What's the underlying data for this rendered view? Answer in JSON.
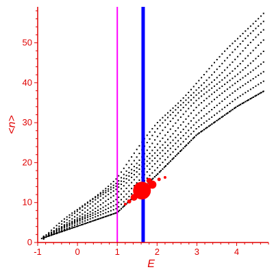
{
  "chart_data": {
    "type": "scatter",
    "title": "",
    "xlabel": "E",
    "ylabel": "<n>",
    "xlim": [
      -1,
      4.8
    ],
    "ylim": [
      0,
      59
    ],
    "xticks": [
      -1,
      0,
      1,
      2,
      3,
      4
    ],
    "yticks": [
      0,
      10,
      20,
      30,
      40,
      50
    ],
    "grid": false,
    "legend": "none",
    "colors": {
      "axis": "#e00000",
      "points": "#000000",
      "highlight": "#ff0000",
      "line_e1": "#ff00ff",
      "line_e2": "#0000ff"
    },
    "vertical_lines": [
      {
        "x": 1.0,
        "color": "#ff00ff",
        "width": 2
      },
      {
        "x": 1.65,
        "color": "#0000ff",
        "width": 5
      }
    ],
    "bands": {
      "lower_edge": [
        [
          -0.9,
          1
        ],
        [
          1.0,
          7.5
        ],
        [
          2.0,
          17
        ],
        [
          3.0,
          27
        ],
        [
          4.0,
          34
        ],
        [
          4.7,
          38
        ]
      ],
      "upper_edge": [
        [
          -0.9,
          1
        ],
        [
          0.0,
          8
        ],
        [
          1.0,
          17
        ],
        [
          2.0,
          30
        ],
        [
          3.0,
          41
        ],
        [
          4.0,
          51
        ],
        [
          4.7,
          59
        ]
      ],
      "row_spacing": 0.12
    },
    "highlight_points": [
      {
        "x": 1.62,
        "y": 13.0,
        "r": 13
      },
      {
        "x": 1.88,
        "y": 14.5,
        "r": 6
      },
      {
        "x": 1.42,
        "y": 11.3,
        "r": 5
      },
      {
        "x": 1.8,
        "y": 15.5,
        "r": 4
      },
      {
        "x": 1.3,
        "y": 10.3,
        "r": 3
      },
      {
        "x": 2.05,
        "y": 15.8,
        "r": 2.5
      },
      {
        "x": 2.2,
        "y": 16.3,
        "r": 2
      },
      {
        "x": 1.2,
        "y": 9.6,
        "r": 2
      }
    ]
  }
}
